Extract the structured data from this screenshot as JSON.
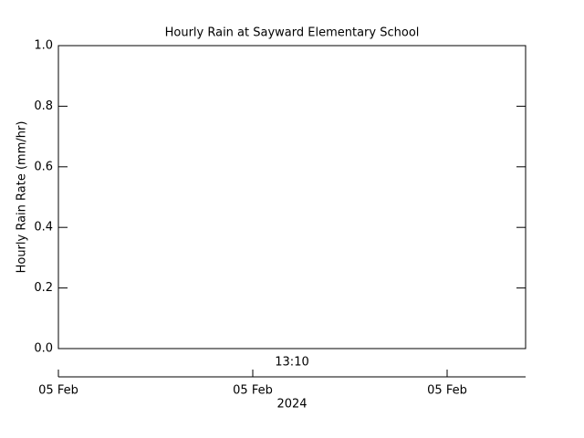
{
  "chart_data": {
    "type": "line",
    "title": "Hourly Rain at Sayward Elementary School",
    "ylabel": "Hourly Rain Rate (mm/hr)",
    "ylim": [
      0,
      1
    ],
    "yticks": [
      {
        "value": 0,
        "label": "0.0"
      },
      0.2,
      0.4,
      0.6,
      0.8,
      {
        "value": 1,
        "label": "1.0"
      }
    ],
    "series": [],
    "annotation": "13:10",
    "xticklabels": [
      "05 Feb",
      "05 Feb",
      "05 Feb"
    ],
    "xlabel": "2024"
  }
}
